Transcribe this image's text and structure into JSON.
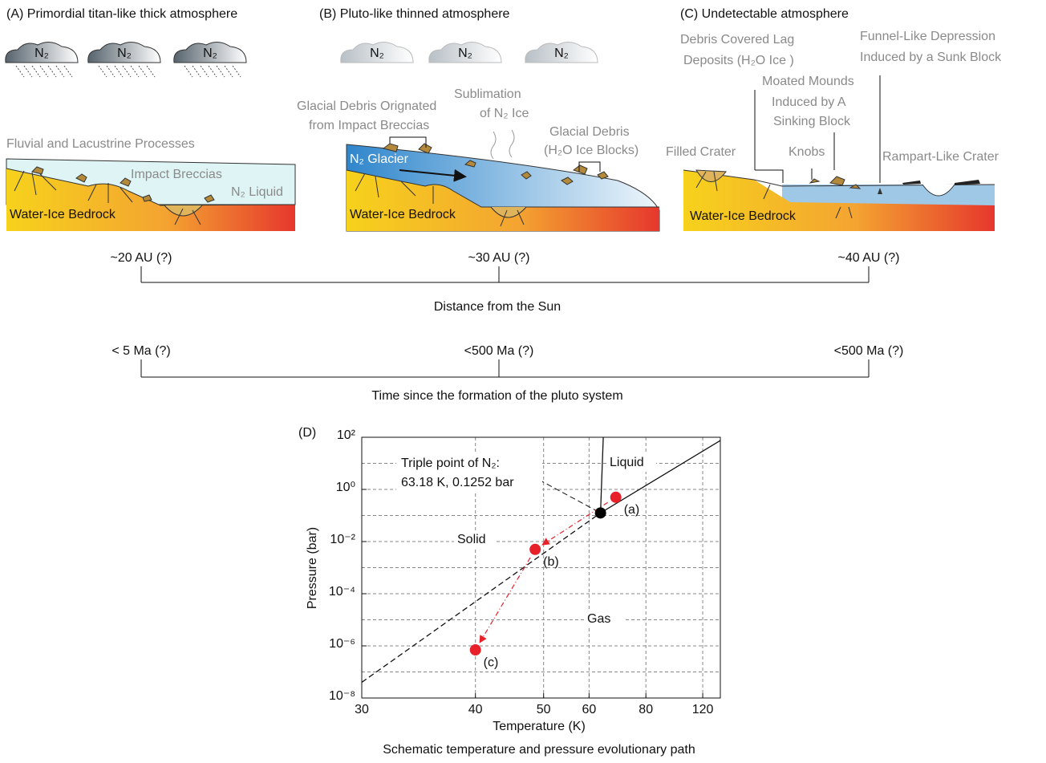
{
  "panels": [
    {
      "title": "(A) Primordial titan-like thick atmosphere",
      "clouds": [
        "N₂",
        "N₂",
        "N₂"
      ],
      "labels": [
        "Fluvial and Lacustrine Processes",
        "Impact Breccias",
        "N₂ Liquid",
        "Water-Ice Bedrock"
      ]
    },
    {
      "title": "(B) Pluto-like thinned atmosphere",
      "clouds": [
        "N₂",
        "N₂",
        "N₂"
      ],
      "labels": [
        "Glacial Debris Orignated",
        "from Impact Breccias",
        "Sublimation",
        "of N₂ Ice",
        "Glacial Debris",
        "(H₂O Ice Blocks)",
        "N₂ Glacier",
        "Water-Ice Bedrock"
      ]
    },
    {
      "title": "(C) Undetectable atmosphere",
      "labels": [
        "Debris Covered Lag",
        "Deposits  (H₂O Ice )",
        "Funnel-Like Depression",
        "Induced by a Sunk Block",
        "Moated Mounds",
        "Induced by A",
        "Sinking Block",
        "Filled Crater",
        "Knobs",
        "Rampart-Like Crater",
        "Water-Ice Bedrock"
      ]
    }
  ],
  "distance": {
    "title": "Distance from the Sun",
    "labels": [
      "~20 AU (?)",
      "~30 AU (?)",
      "~40 AU (?)"
    ]
  },
  "time": {
    "title": "Time since the formation of the pluto system",
    "labels": [
      "< 5  Ma (?)",
      "<500  Ma (?)",
      "<500  Ma (?)"
    ]
  },
  "chart_data": {
    "type": "scatter",
    "panel_label": "(D)",
    "xlabel": "Temperature (K)",
    "ylabel": "Pressure (bar)",
    "caption": "Schematic temperature and pressure evolutionary path",
    "xscale": "reciprocal",
    "yscale": "log",
    "grid": true,
    "xlim": [
      30,
      142
    ],
    "ylim": [
      1e-08,
      100
    ],
    "xticks": [
      30,
      40,
      50,
      60,
      80,
      120
    ],
    "yticks": [
      {
        "value": 100,
        "label": "10²"
      },
      {
        "value": 1,
        "label": "10⁰"
      },
      {
        "value": 0.01,
        "label": "10⁻²"
      },
      {
        "value": 0.0001,
        "label": "10⁻⁴"
      },
      {
        "value": 1e-06,
        "label": "10⁻⁶"
      },
      {
        "value": 1e-08,
        "label": "10⁻⁸"
      }
    ],
    "yminor": [
      10,
      0.1,
      0.001,
      1e-05,
      1e-07
    ],
    "x": [
      68,
      48.5,
      40
    ],
    "values": [
      0.5,
      0.005,
      7e-07
    ],
    "point_labels": [
      "(a)",
      "(b)",
      "(c)"
    ],
    "color": "#e8202a",
    "triple_point": {
      "x": 63.18,
      "y": 0.1252,
      "color": "#000000"
    },
    "annotation": [
      "Triple point of N₂:",
      "63.18 K, 0.1252 bar"
    ],
    "regions": [
      "Liquid",
      "Solid",
      "Gas"
    ],
    "boundaries": [
      {
        "style": "dashed",
        "x": [
          30,
          63.18
        ],
        "y": [
          4e-08,
          0.1252
        ]
      },
      {
        "style": "solid",
        "x": [
          63.18,
          142
        ],
        "y": [
          0.1252,
          75
        ]
      },
      {
        "style": "solid",
        "x": [
          63.18,
          64
        ],
        "y": [
          0.1252,
          100
        ]
      }
    ]
  }
}
